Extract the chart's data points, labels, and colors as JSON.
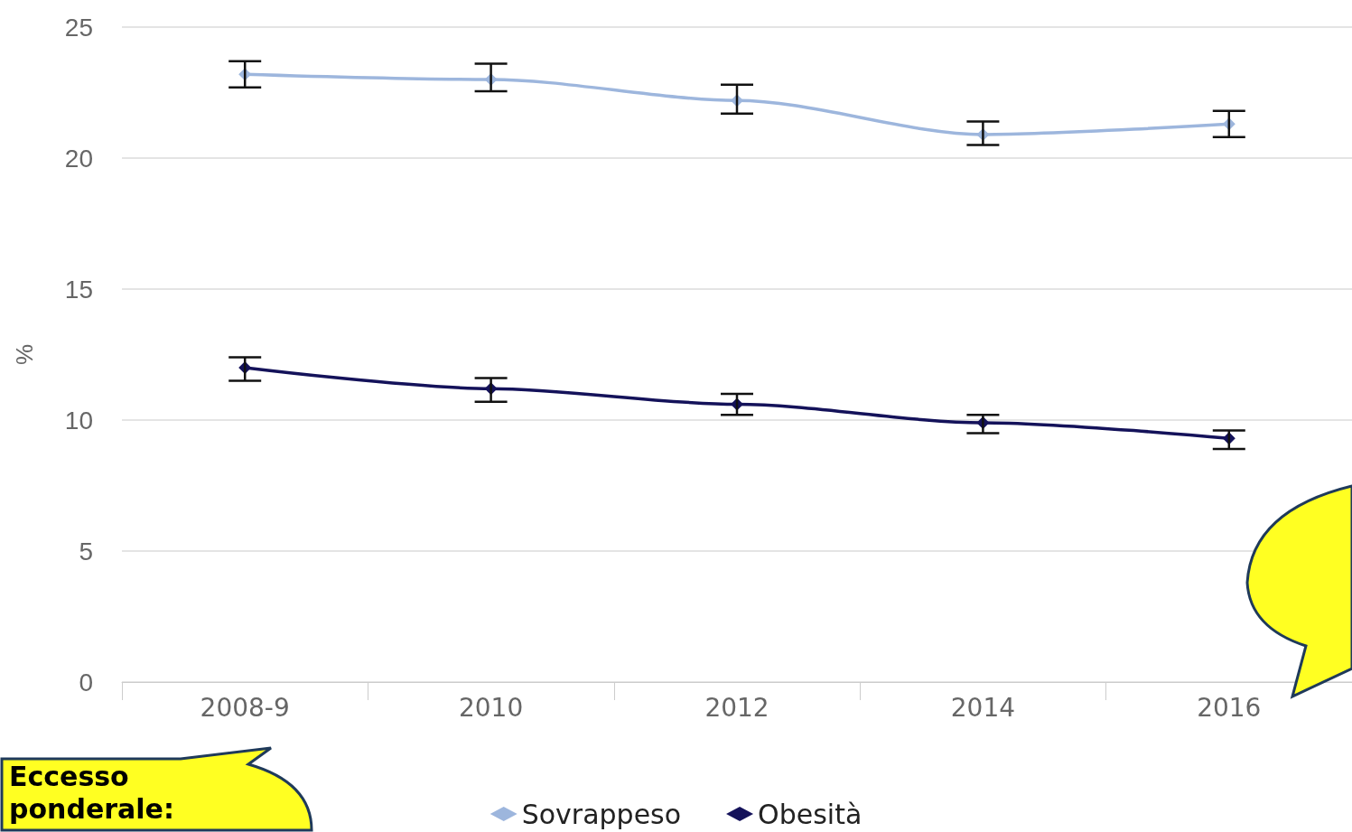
{
  "chart_data": {
    "type": "line",
    "ylabel": "%",
    "categories": [
      "2008-9",
      "2010",
      "2012",
      "2014",
      "2016"
    ],
    "series": [
      {
        "name": "Sovrappeso",
        "color": "#9db6dd",
        "values": [
          23.2,
          23.0,
          22.2,
          20.9,
          21.3
        ],
        "errors": [
          [
            22.7,
            23.7
          ],
          [
            22.55,
            23.6
          ],
          [
            21.7,
            22.8
          ],
          [
            20.5,
            21.4
          ],
          [
            20.8,
            21.8
          ]
        ]
      },
      {
        "name": "Obesità",
        "color": "#14125a",
        "values": [
          12.0,
          11.2,
          10.6,
          9.9,
          9.3
        ],
        "errors": [
          [
            11.5,
            12.4
          ],
          [
            10.7,
            11.6
          ],
          [
            10.2,
            11.0
          ],
          [
            9.5,
            10.2
          ],
          [
            8.9,
            9.6
          ]
        ]
      }
    ],
    "ylim": [
      0,
      25
    ],
    "yticks": [
      0,
      5,
      10,
      15,
      20,
      25
    ],
    "grid": "y",
    "legend": "bottom",
    "marker": "diamond",
    "line_style": "solid",
    "annotations": [
      "Eccesso ponderale:"
    ]
  }
}
